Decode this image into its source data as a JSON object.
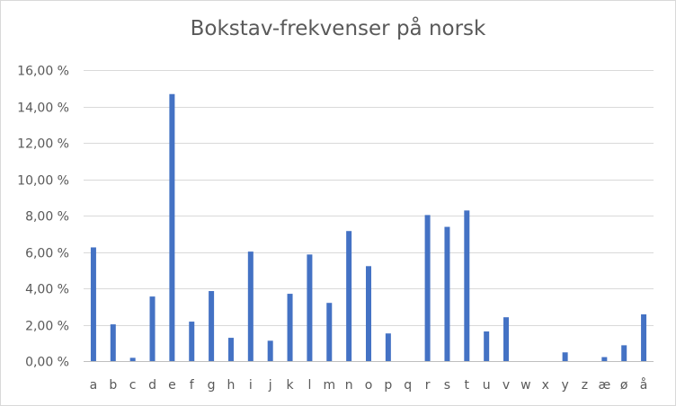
{
  "chart_data": {
    "type": "bar",
    "title": "Bokstav-frekvenser på norsk",
    "xlabel": "",
    "ylabel": "",
    "ylim": [
      0,
      16
    ],
    "yticks": [
      0,
      2,
      4,
      6,
      8,
      10,
      12,
      14,
      16
    ],
    "ytick_labels": [
      "0,00 %",
      "2,00 %",
      "4,00 %",
      "6,00 %",
      "8,00 %",
      "10,00 %",
      "12,00 %",
      "14,00 %",
      "16,00 %"
    ],
    "grid": true,
    "bar_color": "#4472c4",
    "categories": [
      "a",
      "b",
      "c",
      "d",
      "e",
      "f",
      "g",
      "h",
      "i",
      "j",
      "k",
      "l",
      "m",
      "n",
      "o",
      "p",
      "q",
      "r",
      "s",
      "t",
      "u",
      "v",
      "w",
      "x",
      "y",
      "z",
      "æ",
      "ø",
      "å"
    ],
    "values": [
      6.25,
      2.02,
      0.18,
      3.55,
      14.68,
      2.17,
      3.85,
      1.28,
      6.02,
      1.12,
      3.7,
      5.86,
      3.2,
      7.15,
      5.22,
      1.52,
      0.0,
      8.03,
      7.38,
      8.28,
      1.63,
      2.41,
      0.0,
      0.0,
      0.48,
      0.0,
      0.22,
      0.87,
      2.57
    ]
  }
}
